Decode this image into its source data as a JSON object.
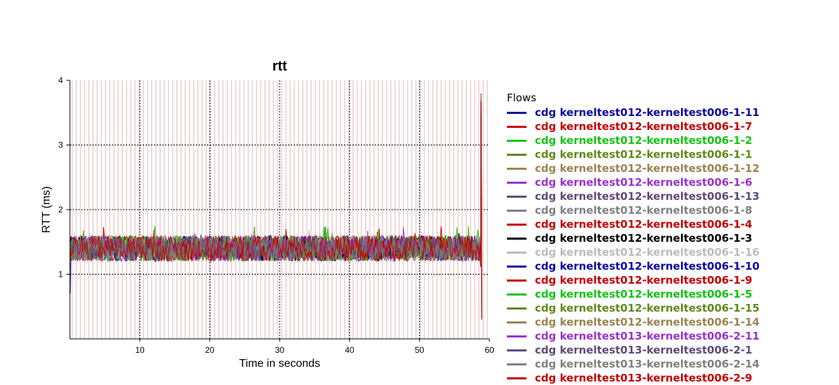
{
  "chart_data": {
    "type": "line",
    "title": "rtt",
    "xlabel": "Time in seconds",
    "ylabel": "RTT (ms)",
    "xlim": [
      0,
      60
    ],
    "ylim": [
      0,
      4
    ],
    "x_ticks": [
      "10",
      "20",
      "30",
      "40",
      "50",
      "60"
    ],
    "y_ticks": [
      "1",
      "2",
      "3",
      "4"
    ],
    "grid": "dotted, major x every 10 s and y every 1 ms",
    "legend_title": "Flows",
    "legend_position": "right",
    "typical_range": [
      1.2,
      1.6
    ],
    "end_spike": {
      "x": 58.8,
      "y_max": 3.8
    },
    "series": [
      {
        "name": "cdg kerneltest012-kerneltest006-1-11",
        "color": "#0a0a9e"
      },
      {
        "name": "cdg kerneltest012-kerneltest006-1-7",
        "color": "#c40000"
      },
      {
        "name": "cdg kerneltest012-kerneltest006-1-2",
        "color": "#12c412"
      },
      {
        "name": "cdg kerneltest012-kerneltest006-1-1",
        "color": "#5e8a1a"
      },
      {
        "name": "cdg kerneltest012-kerneltest006-1-12",
        "color": "#9a8450"
      },
      {
        "name": "cdg kerneltest012-kerneltest006-1-6",
        "color": "#9933cc"
      },
      {
        "name": "cdg kerneltest012-kerneltest006-1-13",
        "color": "#5f4a78"
      },
      {
        "name": "cdg kerneltest012-kerneltest006-1-8",
        "color": "#808080"
      },
      {
        "name": "cdg kerneltest012-kerneltest006-1-4",
        "color": "#c40000"
      },
      {
        "name": "cdg kerneltest012-kerneltest006-1-3",
        "color": "#000000"
      },
      {
        "name": "cdg kerneltest012-kerneltest006-1-16",
        "color": "#bbbbbb"
      },
      {
        "name": "cdg kerneltest012-kerneltest006-1-10",
        "color": "#0a0a9e"
      },
      {
        "name": "cdg kerneltest012-kerneltest006-1-9",
        "color": "#c40000"
      },
      {
        "name": "cdg kerneltest012-kerneltest006-1-5",
        "color": "#12c412"
      },
      {
        "name": "cdg kerneltest012-kerneltest006-1-15",
        "color": "#5e8a1a"
      },
      {
        "name": "cdg kerneltest012-kerneltest006-1-14",
        "color": "#9a8450"
      },
      {
        "name": "cdg kerneltest013-kerneltest006-2-11",
        "color": "#9933cc"
      },
      {
        "name": "cdg kerneltest013-kerneltest006-2-1",
        "color": "#5f4a78"
      },
      {
        "name": "cdg kerneltest013-kerneltest006-2-14",
        "color": "#808080"
      },
      {
        "name": "cdg kerneltest013-kerneltest006-2-9",
        "color": "#c40000"
      }
    ]
  }
}
